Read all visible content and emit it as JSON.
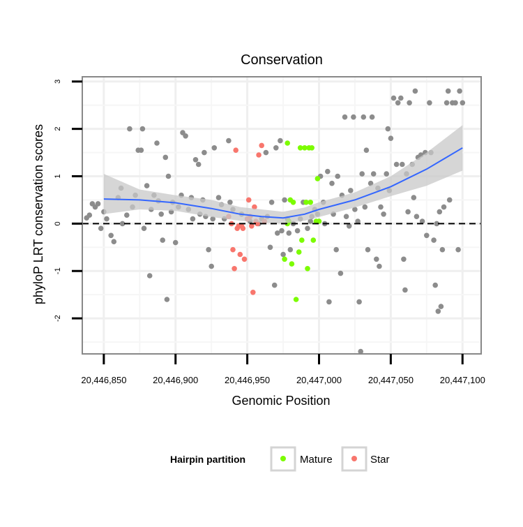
{
  "chart_data": {
    "type": "scatter",
    "title": "Conservation",
    "xlabel": "Genomic Position",
    "ylabel": "phyloP LRT conservation scores",
    "xlim": [
      20446835,
      20447113
    ],
    "ylim": [
      -2.75,
      3.1
    ],
    "x_ticks": [
      20446850,
      20446900,
      20446950,
      20447000,
      20447050,
      20447100
    ],
    "x_tick_labels": [
      "20,446,850",
      "20,446,900",
      "20,446,950",
      "20,447,000",
      "20,447,050",
      "20,447,100"
    ],
    "y_ticks": [
      -2,
      -1,
      0,
      1,
      2,
      3
    ],
    "y_tick_labels": [
      "-2",
      "-1",
      "0",
      "1",
      "2",
      "3"
    ],
    "grid": true,
    "reference_line": {
      "y": 0,
      "style": "dashed",
      "color": "#000000"
    },
    "legend": {
      "title": "Hairpin partition",
      "placement": "bottom",
      "entries": [
        {
          "label": "Mature",
          "color": "#7cfc00"
        },
        {
          "label": "Star",
          "color": "#f8766d"
        }
      ]
    },
    "colors": {
      "other": "#8c8c8c",
      "Mature": "#7cfc00",
      "Star": "#f8766d",
      "smooth": "#3366ff",
      "band": "#c8c8c8"
    },
    "series": [
      {
        "category": "other",
        "points": [
          [
            20446838,
            0.12
          ],
          [
            20446840,
            0.18
          ],
          [
            20446842,
            0.42
          ],
          [
            20446844,
            0.35
          ],
          [
            20446846,
            0.42
          ],
          [
            20446848,
            -0.1
          ],
          [
            20446850,
            0.25
          ],
          [
            20446852,
            0.1
          ],
          [
            20446855,
            -0.25
          ],
          [
            20446857,
            -0.38
          ],
          [
            20446860,
            0.55
          ],
          [
            20446862,
            0.75
          ],
          [
            20446863,
            0.0
          ],
          [
            20446866,
            0.18
          ],
          [
            20446868,
            2.0
          ],
          [
            20446870,
            0.35
          ],
          [
            20446872,
            0.6
          ],
          [
            20446874,
            1.55
          ],
          [
            20446876,
            1.55
          ],
          [
            20446877,
            2.0
          ],
          [
            20446878,
            -0.1
          ],
          [
            20446880,
            0.8
          ],
          [
            20446882,
            -1.1
          ],
          [
            20446883,
            0.3
          ],
          [
            20446885,
            0.6
          ],
          [
            20446887,
            1.7
          ],
          [
            20446888,
            0.48
          ],
          [
            20446890,
            0.2
          ],
          [
            20446891,
            -0.35
          ],
          [
            20446893,
            1.4
          ],
          [
            20446894,
            -1.6
          ],
          [
            20446895,
            1.0
          ],
          [
            20446897,
            0.25
          ],
          [
            20446898,
            0.45
          ],
          [
            20446900,
            -0.4
          ],
          [
            20446902,
            0.35
          ],
          [
            20446904,
            0.6
          ],
          [
            20446905,
            1.92
          ],
          [
            20446907,
            1.85
          ],
          [
            20446909,
            0.3
          ],
          [
            20446911,
            0.55
          ],
          [
            20446912,
            0.1
          ],
          [
            20446914,
            1.35
          ],
          [
            20446916,
            1.25
          ],
          [
            20446917,
            0.2
          ],
          [
            20446919,
            0.5
          ],
          [
            20446920,
            1.5
          ],
          [
            20446921,
            0.15
          ],
          [
            20446923,
            -0.55
          ],
          [
            20446925,
            -0.9
          ],
          [
            20446926,
            0.1
          ],
          [
            20446927,
            1.6
          ],
          [
            20446930,
            0.55
          ],
          [
            20446932,
            0.4
          ],
          [
            20446934,
            0.1
          ],
          [
            20446937,
            1.75
          ],
          [
            20446938,
            0.45
          ],
          [
            20446940,
            0.3
          ],
          [
            20446946,
            0.2
          ],
          [
            20446952,
            0.05
          ],
          [
            20446958,
            0.0
          ],
          [
            20446960,
            0.1
          ],
          [
            20446963,
            1.5
          ],
          [
            20446964,
            0.15
          ],
          [
            20446966,
            -0.5
          ],
          [
            20446967,
            0.45
          ],
          [
            20446969,
            -1.3
          ],
          [
            20446970,
            1.6
          ],
          [
            20446971,
            -0.2
          ],
          [
            20446973,
            1.75
          ],
          [
            20446974,
            -0.15
          ],
          [
            20446975,
            -0.65
          ],
          [
            20446976,
            0.5
          ],
          [
            20446978,
            0.1
          ],
          [
            20446979,
            -0.2
          ],
          [
            20446980,
            -0.55
          ],
          [
            20446982,
            0.0
          ],
          [
            20446985,
            -0.15
          ],
          [
            20446987,
            0.1
          ],
          [
            20446989,
            0.45
          ],
          [
            20446992,
            -0.1
          ],
          [
            20446994,
            0.05
          ],
          [
            20446995,
            0.15
          ],
          [
            20446997,
            0.3
          ],
          [
            20446999,
            0.2
          ],
          [
            20447001,
            1.0
          ],
          [
            20447003,
            0.45
          ],
          [
            20447004,
            0.0
          ],
          [
            20447006,
            1.1
          ],
          [
            20447007,
            -1.65
          ],
          [
            20447009,
            0.85
          ],
          [
            20447010,
            0.2
          ],
          [
            20447012,
            -0.55
          ],
          [
            20447013,
            1.0
          ],
          [
            20447015,
            -1.05
          ],
          [
            20447016,
            0.6
          ],
          [
            20447018,
            2.25
          ],
          [
            20447019,
            0.15
          ],
          [
            20447021,
            -0.05
          ],
          [
            20447022,
            0.7
          ],
          [
            20447024,
            2.25
          ],
          [
            20447025,
            0.3
          ],
          [
            20447027,
            0.05
          ],
          [
            20447028,
            -1.65
          ],
          [
            20447029,
            -2.7
          ],
          [
            20447030,
            1.05
          ],
          [
            20447031,
            2.25
          ],
          [
            20447032,
            0.35
          ],
          [
            20447033,
            1.55
          ],
          [
            20447034,
            -0.55
          ],
          [
            20447036,
            0.85
          ],
          [
            20447037,
            2.25
          ],
          [
            20447038,
            1.05
          ],
          [
            20447040,
            -0.75
          ],
          [
            20447041,
            0.75
          ],
          [
            20447042,
            -0.9
          ],
          [
            20447043,
            0.35
          ],
          [
            20447045,
            0.2
          ],
          [
            20447047,
            1.05
          ],
          [
            20447048,
            2.0
          ],
          [
            20447049,
            0.7
          ],
          [
            20447050,
            1.8
          ],
          [
            20447052,
            2.65
          ],
          [
            20447054,
            1.25
          ],
          [
            20447055,
            2.55
          ],
          [
            20447057,
            2.65
          ],
          [
            20447058,
            1.25
          ],
          [
            20447059,
            -0.75
          ],
          [
            20447060,
            -1.4
          ],
          [
            20447061,
            1.05
          ],
          [
            20447062,
            0.25
          ],
          [
            20447063,
            2.55
          ],
          [
            20447065,
            1.25
          ],
          [
            20447066,
            0.55
          ],
          [
            20447067,
            2.8
          ],
          [
            20447068,
            0.15
          ],
          [
            20447069,
            1.4
          ],
          [
            20447071,
            1.45
          ],
          [
            20447072,
            0.05
          ],
          [
            20447074,
            1.5
          ],
          [
            20447075,
            -0.25
          ],
          [
            20447077,
            2.55
          ],
          [
            20447078,
            1.5
          ],
          [
            20447080,
            -0.35
          ],
          [
            20447081,
            -1.3
          ],
          [
            20447082,
            0.0
          ],
          [
            20447083,
            -1.85
          ],
          [
            20447084,
            0.25
          ],
          [
            20447085,
            -1.75
          ],
          [
            20447086,
            -0.55
          ],
          [
            20447087,
            0.35
          ],
          [
            20447089,
            2.55
          ],
          [
            20447090,
            2.8
          ],
          [
            20447091,
            0.5
          ],
          [
            20447093,
            2.55
          ],
          [
            20447095,
            2.55
          ],
          [
            20447097,
            -0.55
          ],
          [
            20447098,
            2.8
          ],
          [
            20447100,
            2.55
          ]
        ]
      },
      {
        "category": "Star",
        "points": [
          [
            20446937,
            0.15
          ],
          [
            20446939,
            0.0
          ],
          [
            20446940,
            -0.55
          ],
          [
            20446941,
            -0.95
          ],
          [
            20446942,
            1.55
          ],
          [
            20446943,
            -0.1
          ],
          [
            20446944,
            -0.05
          ],
          [
            20446945,
            -0.65
          ],
          [
            20446946,
            -0.05
          ],
          [
            20446947,
            -0.1
          ],
          [
            20446948,
            -0.75
          ],
          [
            20446950,
            0.1
          ],
          [
            20446951,
            0.5
          ],
          [
            20446952,
            0.15
          ],
          [
            20446953,
            -0.05
          ],
          [
            20446954,
            -1.45
          ],
          [
            20446955,
            0.35
          ],
          [
            20446956,
            0.05
          ],
          [
            20446957,
            0.0
          ],
          [
            20446958,
            1.45
          ],
          [
            20446960,
            1.65
          ],
          [
            20446962,
            0.05
          ]
        ]
      },
      {
        "category": "Mature",
        "points": [
          [
            20446976,
            -0.75
          ],
          [
            20446978,
            1.7
          ],
          [
            20446978,
            0.0
          ],
          [
            20446979,
            0.05
          ],
          [
            20446980,
            0.5
          ],
          [
            20446981,
            -0.85
          ],
          [
            20446982,
            0.45
          ],
          [
            20446984,
            -1.6
          ],
          [
            20446986,
            -0.6
          ],
          [
            20446987,
            1.6
          ],
          [
            20446988,
            -0.35
          ],
          [
            20446990,
            1.6
          ],
          [
            20446991,
            0.45
          ],
          [
            20446992,
            -0.95
          ],
          [
            20446993,
            1.6
          ],
          [
            20446994,
            0.45
          ],
          [
            20446995,
            1.6
          ],
          [
            20446996,
            -0.35
          ],
          [
            20446998,
            0.05
          ],
          [
            20446999,
            0.95
          ],
          [
            20447000,
            0.05
          ]
        ]
      }
    ],
    "smooth": {
      "x": [
        20446850,
        20446875,
        20446900,
        20446925,
        20446945,
        20446960,
        20446975,
        20446990,
        20447000,
        20447025,
        20447050,
        20447075,
        20447100
      ],
      "y": [
        0.52,
        0.5,
        0.44,
        0.32,
        0.2,
        0.15,
        0.12,
        0.2,
        0.3,
        0.5,
        0.78,
        1.15,
        1.6
      ],
      "lower": [
        0.2,
        0.3,
        0.27,
        0.14,
        0.06,
        0.02,
        0.0,
        0.06,
        0.14,
        0.34,
        0.58,
        0.8,
        1.12
      ],
      "upper": [
        1.05,
        0.72,
        0.6,
        0.5,
        0.35,
        0.3,
        0.25,
        0.34,
        0.45,
        0.66,
        1.0,
        1.5,
        2.08
      ]
    }
  }
}
